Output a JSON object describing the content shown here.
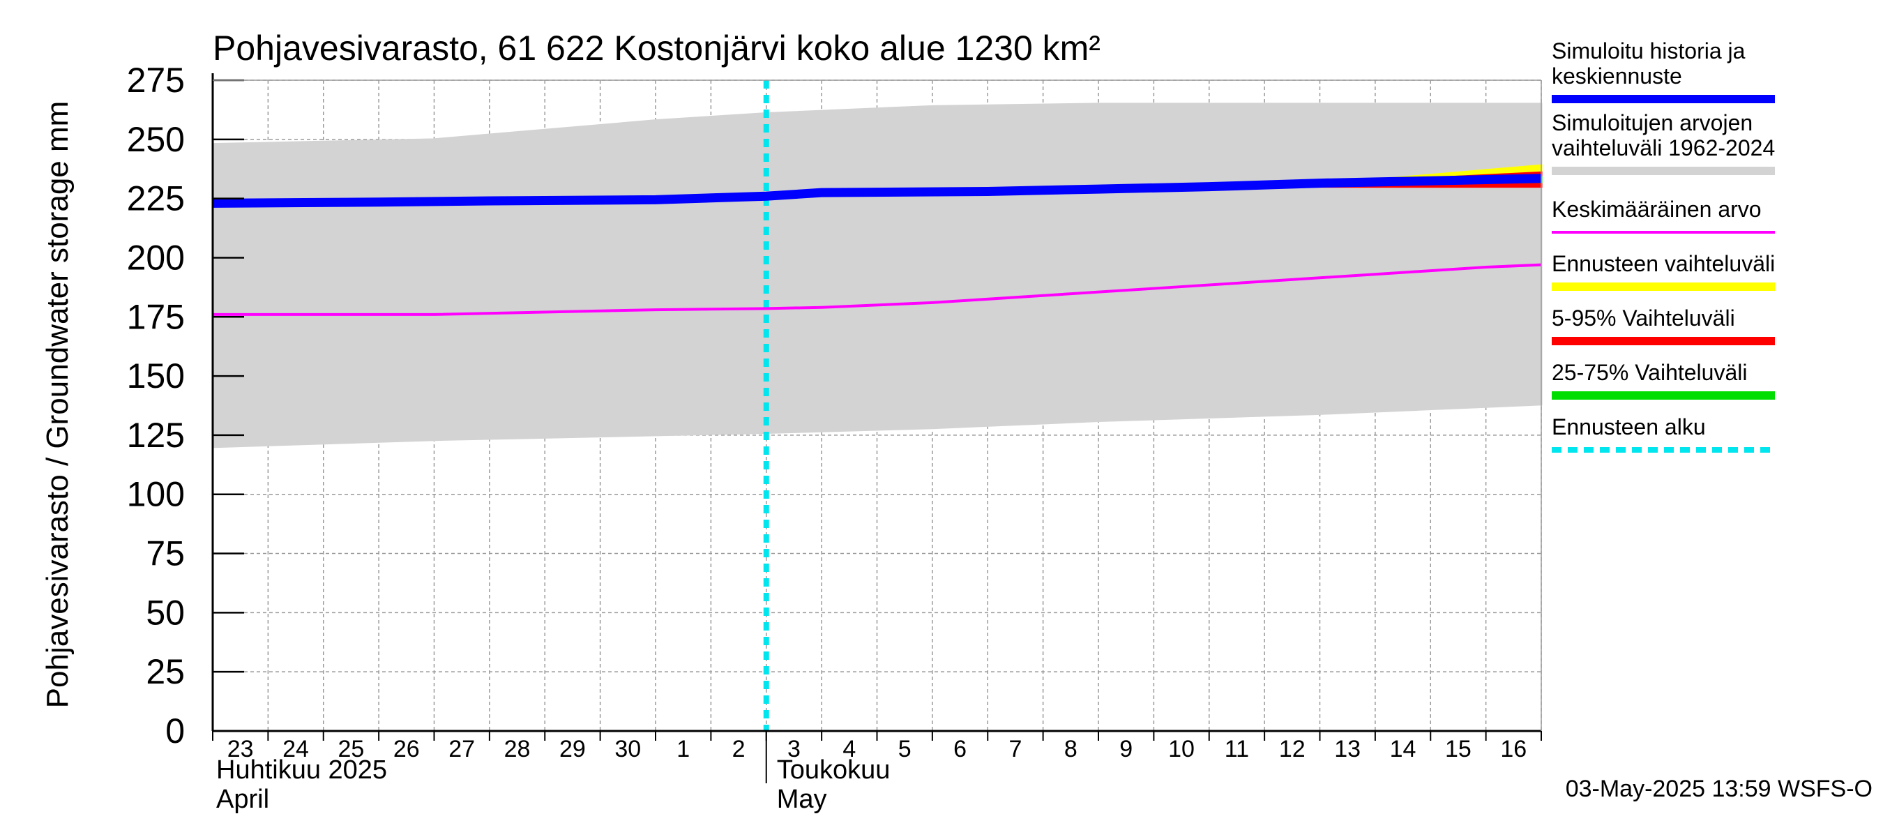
{
  "chart_data": {
    "type": "area",
    "title": "Pohjavesivarasto, 61 622 Kostonjärvi koko alue 1230 km²",
    "ylabel": "Pohjavesivarasto / Groundwater storage   mm",
    "ylim": [
      0,
      275
    ],
    "yticks": [
      0,
      25,
      50,
      75,
      100,
      125,
      150,
      175,
      200,
      225,
      250,
      275
    ],
    "grid": true,
    "legend_position": "right",
    "x_start": "2025-04-23",
    "x_end": "2025-05-17",
    "day_labels": [
      "23",
      "24",
      "25",
      "26",
      "27",
      "28",
      "29",
      "30",
      "1",
      "2",
      "3",
      "4",
      "5",
      "6",
      "7",
      "8",
      "9",
      "10",
      "11",
      "12",
      "13",
      "14",
      "15",
      "16"
    ],
    "month_labels": [
      {
        "fi": "Huhtikuu  2025",
        "en": "April",
        "start": "2025-04-23"
      },
      {
        "fi": "Toukokuu",
        "en": "May",
        "start": "2025-05-03"
      }
    ],
    "forecast_start": "2025-05-03",
    "timestamp": "03-May-2025 13:59 WSFS-O",
    "series": [
      {
        "name": "Simuloitujen arvojen vaihteluväli 1962-2024",
        "kind": "band",
        "color": "#d3d3d3",
        "x": [
          "2025-04-23",
          "2025-04-27",
          "2025-05-01",
          "2025-05-03",
          "2025-05-06",
          "2025-05-09",
          "2025-05-13",
          "2025-05-17"
        ],
        "lower": [
          120,
          123,
          125,
          126,
          128,
          131,
          134,
          138
        ],
        "upper": [
          248,
          250,
          258,
          261,
          264,
          265,
          265,
          265
        ]
      },
      {
        "name": "Keskimääräinen arvo",
        "kind": "line",
        "color": "#ff00ff",
        "x": [
          "2025-04-23",
          "2025-04-27",
          "2025-05-01",
          "2025-05-03",
          "2025-05-04",
          "2025-05-06",
          "2025-05-08",
          "2025-05-10",
          "2025-05-12",
          "2025-05-14",
          "2025-05-16",
          "2025-05-17"
        ],
        "values": [
          176,
          176,
          178,
          178.5,
          179,
          181,
          184,
          187,
          190,
          193,
          196,
          197
        ]
      },
      {
        "name": "Ennusteen vaihteluväli",
        "kind": "band",
        "color": "#ffff00",
        "x": [
          "2025-05-03",
          "2025-05-08",
          "2025-05-12",
          "2025-05-14",
          "2025-05-17"
        ],
        "lower": [
          226,
          228,
          230,
          230.5,
          231
        ],
        "upper": [
          226,
          228,
          231,
          233,
          239
        ]
      },
      {
        "name": "5-95% Vaihteluväli",
        "kind": "band",
        "color": "#ff0000",
        "x": [
          "2025-05-03",
          "2025-05-08",
          "2025-05-12",
          "2025-05-14",
          "2025-05-17"
        ],
        "lower": [
          226,
          228,
          230,
          230,
          230
        ],
        "upper": [
          226,
          228,
          231,
          232.5,
          236
        ]
      },
      {
        "name": "25-75% Vaihteluväli",
        "kind": "band",
        "color": "#00dd00",
        "x": [
          "2025-05-03",
          "2025-05-08",
          "2025-05-12",
          "2025-05-14",
          "2025-05-17"
        ],
        "lower": [
          226,
          228,
          230,
          231,
          232
        ],
        "upper": [
          226,
          228,
          231,
          232,
          234
        ]
      },
      {
        "name": "Simuloitu historia ja keskiennuste",
        "kind": "line",
        "color": "#0000ff",
        "x": [
          "2025-04-23",
          "2025-04-26",
          "2025-04-28",
          "2025-05-01",
          "2025-05-03",
          "2025-05-04",
          "2025-05-07",
          "2025-05-09",
          "2025-05-11",
          "2025-05-13",
          "2025-05-15",
          "2025-05-17"
        ],
        "values": [
          223,
          223.5,
          224,
          224.5,
          226,
          227.5,
          228,
          229,
          230,
          231.5,
          232.5,
          233.5
        ]
      }
    ]
  },
  "legend": [
    {
      "label": "Simuloitu historia ja keskiennuste",
      "color": "#0000ff",
      "style": "thick"
    },
    {
      "label": "Simuloitujen arvojen vaihteluväli 1962-2024",
      "color": "#d3d3d3",
      "style": "thick"
    },
    {
      "label": "Keskimääräinen arvo",
      "color": "#ff00ff",
      "style": "thin"
    },
    {
      "label": "Ennusteen vaihteluväli",
      "color": "#ffff00",
      "style": "thick"
    },
    {
      "label": "5-95% Vaihteluväli",
      "color": "#ff0000",
      "style": "thick"
    },
    {
      "label": "25-75% Vaihteluväli",
      "color": "#00dd00",
      "style": "thick"
    },
    {
      "label": "Ennusteen alku",
      "color": "#00e5ee",
      "style": "dashed"
    }
  ]
}
